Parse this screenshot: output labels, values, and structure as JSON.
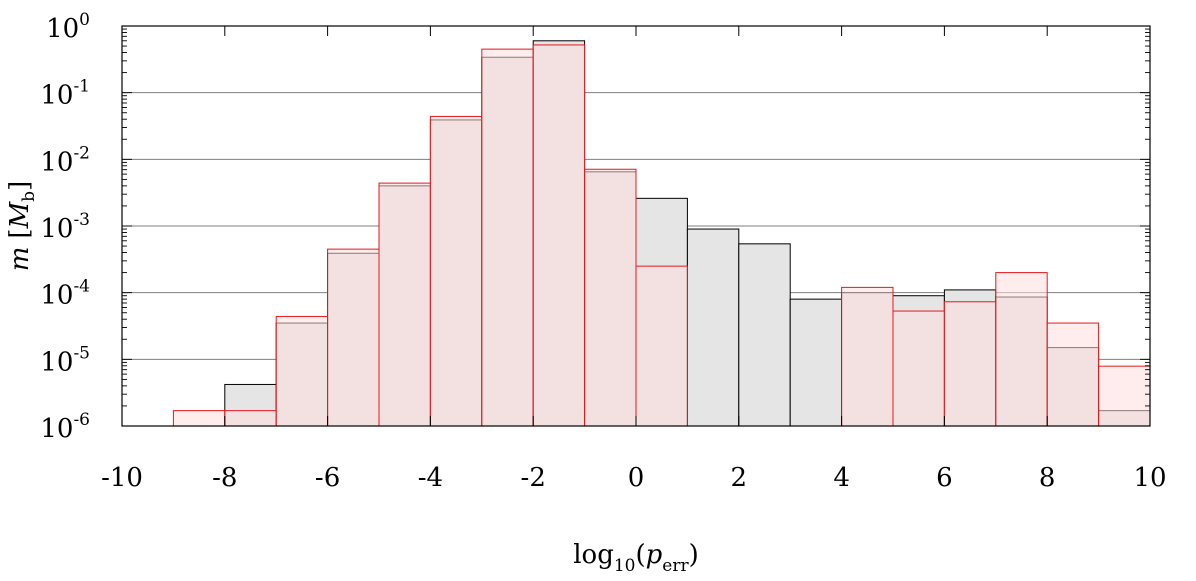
{
  "chart_data": {
    "type": "bar",
    "y_scale": "log",
    "xlim": [
      -10,
      10
    ],
    "ylim": [
      1e-06,
      1
    ],
    "xlabel": {
      "base": "log",
      "base_sub": "10",
      "open": "(",
      "var": "p",
      "var_sub": "err",
      "close": ")"
    },
    "ylabel": {
      "var": "m",
      "open": "[",
      "unit": "M",
      "unit_sub": "b",
      "close": "]"
    },
    "grid": "major-y",
    "x_ticks": [
      -10,
      -8,
      -6,
      -4,
      -2,
      0,
      2,
      4,
      6,
      8,
      10
    ],
    "x_tick_labels": [
      "-10",
      "-8",
      "-6",
      "-4",
      "-2",
      "0",
      "2",
      "4",
      "6",
      "8",
      "10"
    ],
    "y_ticks": [
      {
        "value": 1,
        "base": "10",
        "exp": "0"
      },
      {
        "value": 0.1,
        "base": "10",
        "exp": "-1"
      },
      {
        "value": 0.01,
        "base": "10",
        "exp": "-2"
      },
      {
        "value": 0.001,
        "base": "10",
        "exp": "-3"
      },
      {
        "value": 0.0001,
        "base": "10",
        "exp": "-4"
      },
      {
        "value": 1e-05,
        "base": "10",
        "exp": "-5"
      },
      {
        "value": 1e-06,
        "base": "10",
        "exp": "-6"
      }
    ],
    "bin_edges": [
      -10,
      -9,
      -8,
      -7,
      -6,
      -5,
      -4,
      -3,
      -2,
      -1,
      0,
      1,
      2,
      3,
      4,
      5,
      6,
      7,
      8,
      9,
      10
    ],
    "series": [
      {
        "color": "#000000",
        "fill": "#e5e5e5",
        "values": [
          0,
          0,
          4.2e-06,
          3.5e-05,
          0.00039,
          0.004,
          0.039,
          0.34,
          0.6,
          0.0065,
          0.0026,
          0.0009,
          0.00054,
          8e-05,
          0.0001,
          9e-05,
          0.00011,
          8.6e-05,
          1.5e-05,
          1.7e-06
        ]
      },
      {
        "color": "#e31a1c",
        "fill": "#ffdddd",
        "values": [
          0,
          1.7e-06,
          1.7e-06,
          4.4e-05,
          0.00045,
          0.0044,
          0.044,
          0.45,
          0.52,
          0.0071,
          0.00025,
          0,
          0,
          0,
          0.00012,
          5.3e-05,
          7.3e-05,
          0.0002,
          3.5e-05,
          7.9e-06
        ]
      }
    ]
  }
}
